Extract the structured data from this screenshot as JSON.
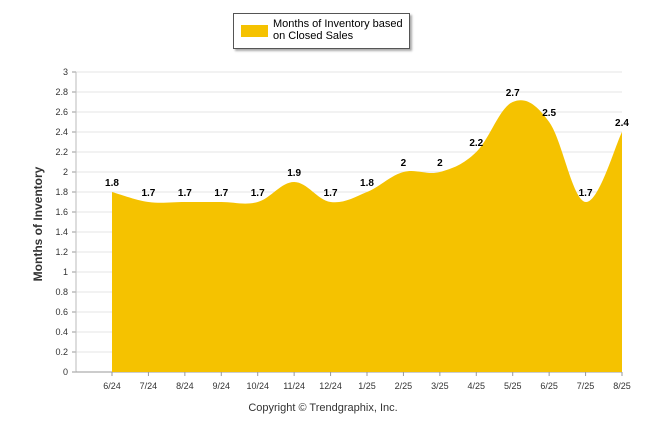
{
  "chart_data": {
    "type": "area",
    "categories": [
      "6/24",
      "7/24",
      "8/24",
      "9/24",
      "10/24",
      "11/24",
      "12/24",
      "1/25",
      "2/25",
      "3/25",
      "4/25",
      "5/25",
      "6/25",
      "7/25",
      "8/25"
    ],
    "series": [
      {
        "name": "Months of Inventory based on Closed Sales",
        "values": [
          1.8,
          1.7,
          1.7,
          1.7,
          1.7,
          1.9,
          1.7,
          1.8,
          2,
          2,
          2.2,
          2.7,
          2.5,
          1.7,
          2.4
        ],
        "labels": [
          "1.8",
          "1.7",
          "1.7",
          "1.7",
          "1.7",
          "1.9",
          "1.7",
          "1.8",
          "2",
          "2",
          "2.2",
          "2.7",
          "2.5",
          "1.7",
          "2.4"
        ],
        "color": "#f5c200"
      }
    ],
    "ylabel": "Months of Inventory",
    "xlabel": "",
    "ylim": [
      0,
      3
    ],
    "yticks": [
      "0",
      "0.2",
      "0.4",
      "0.6",
      "0.8",
      "1",
      "1.2",
      "1.4",
      "1.6",
      "1.8",
      "2",
      "2.2",
      "2.4",
      "2.6",
      "2.8",
      "3"
    ],
    "grid": true,
    "legend": "top-center"
  },
  "legend": {
    "label": "Months of Inventory based on Closed Sales",
    "color": "#f5c200"
  },
  "footer": {
    "copyright": "Copyright © Trendgraphix, Inc."
  }
}
